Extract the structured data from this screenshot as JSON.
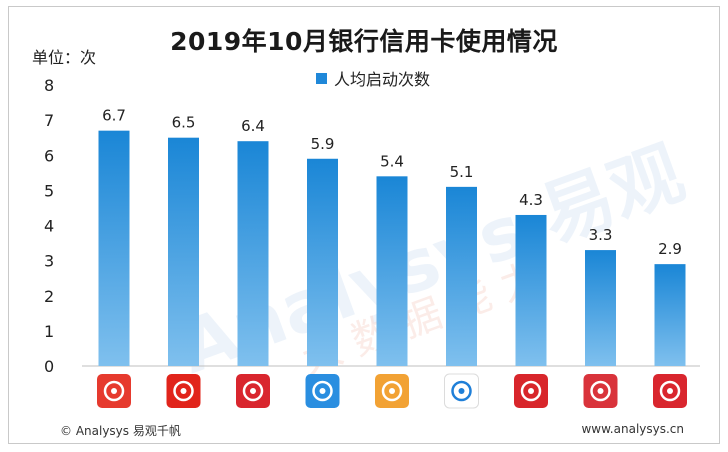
{
  "title": "2019年10月银行信用卡使用情况",
  "unit_label": "单位：次",
  "footer": {
    "left": "© Analysys 易观千帆",
    "right": "www.analysys.cn"
  },
  "watermark": {
    "text": "Analysys 易观",
    "subtext": "大 数 据 能 力"
  },
  "colors": {
    "bar_top": "#1a86d6",
    "bar_bottom": "#7fc0ee",
    "legend": "#1f88d9"
  },
  "icons": [
    {
      "name": "spdb-card-app-icon",
      "bg": "#e63a2e"
    },
    {
      "name": "citic-bank-app-icon",
      "bg": "#e1241b"
    },
    {
      "name": "cgb-app-icon",
      "bg": "#d9262e"
    },
    {
      "name": "quanmin-life-app-icon",
      "bg": "#2a8ee0"
    },
    {
      "name": "bocom-card-app-icon",
      "bg": "#f2a234"
    },
    {
      "name": "icbc-app-icon",
      "bg": "#ffffff"
    },
    {
      "name": "cmb-bank-app-icon",
      "bg": "#d8262b"
    },
    {
      "name": "boc-life-app-icon",
      "bg": "#d9333b"
    },
    {
      "name": "thumb-app-icon",
      "bg": "#d9262e"
    }
  ],
  "chart_data": {
    "type": "bar",
    "title": "2019年10月银行信用卡使用情况",
    "ylabel": "单位：次",
    "xlabel": "",
    "categories": [
      "",
      "",
      "",
      "",
      "",
      "",
      "",
      "",
      ""
    ],
    "series": [
      {
        "name": "人均启动次数",
        "values": [
          6.7,
          6.5,
          6.4,
          5.9,
          5.4,
          5.1,
          4.3,
          3.3,
          2.9
        ]
      }
    ],
    "ylim": [
      0,
      8
    ],
    "yticks": [
      0,
      1,
      2,
      3,
      4,
      5,
      6,
      7,
      8
    ],
    "grid": false,
    "legend_position": "top-center",
    "data_labels": [
      "6.7",
      "6.5",
      "6.4",
      "5.9",
      "5.4",
      "5.1",
      "4.3",
      "3.3",
      "2.9"
    ]
  }
}
